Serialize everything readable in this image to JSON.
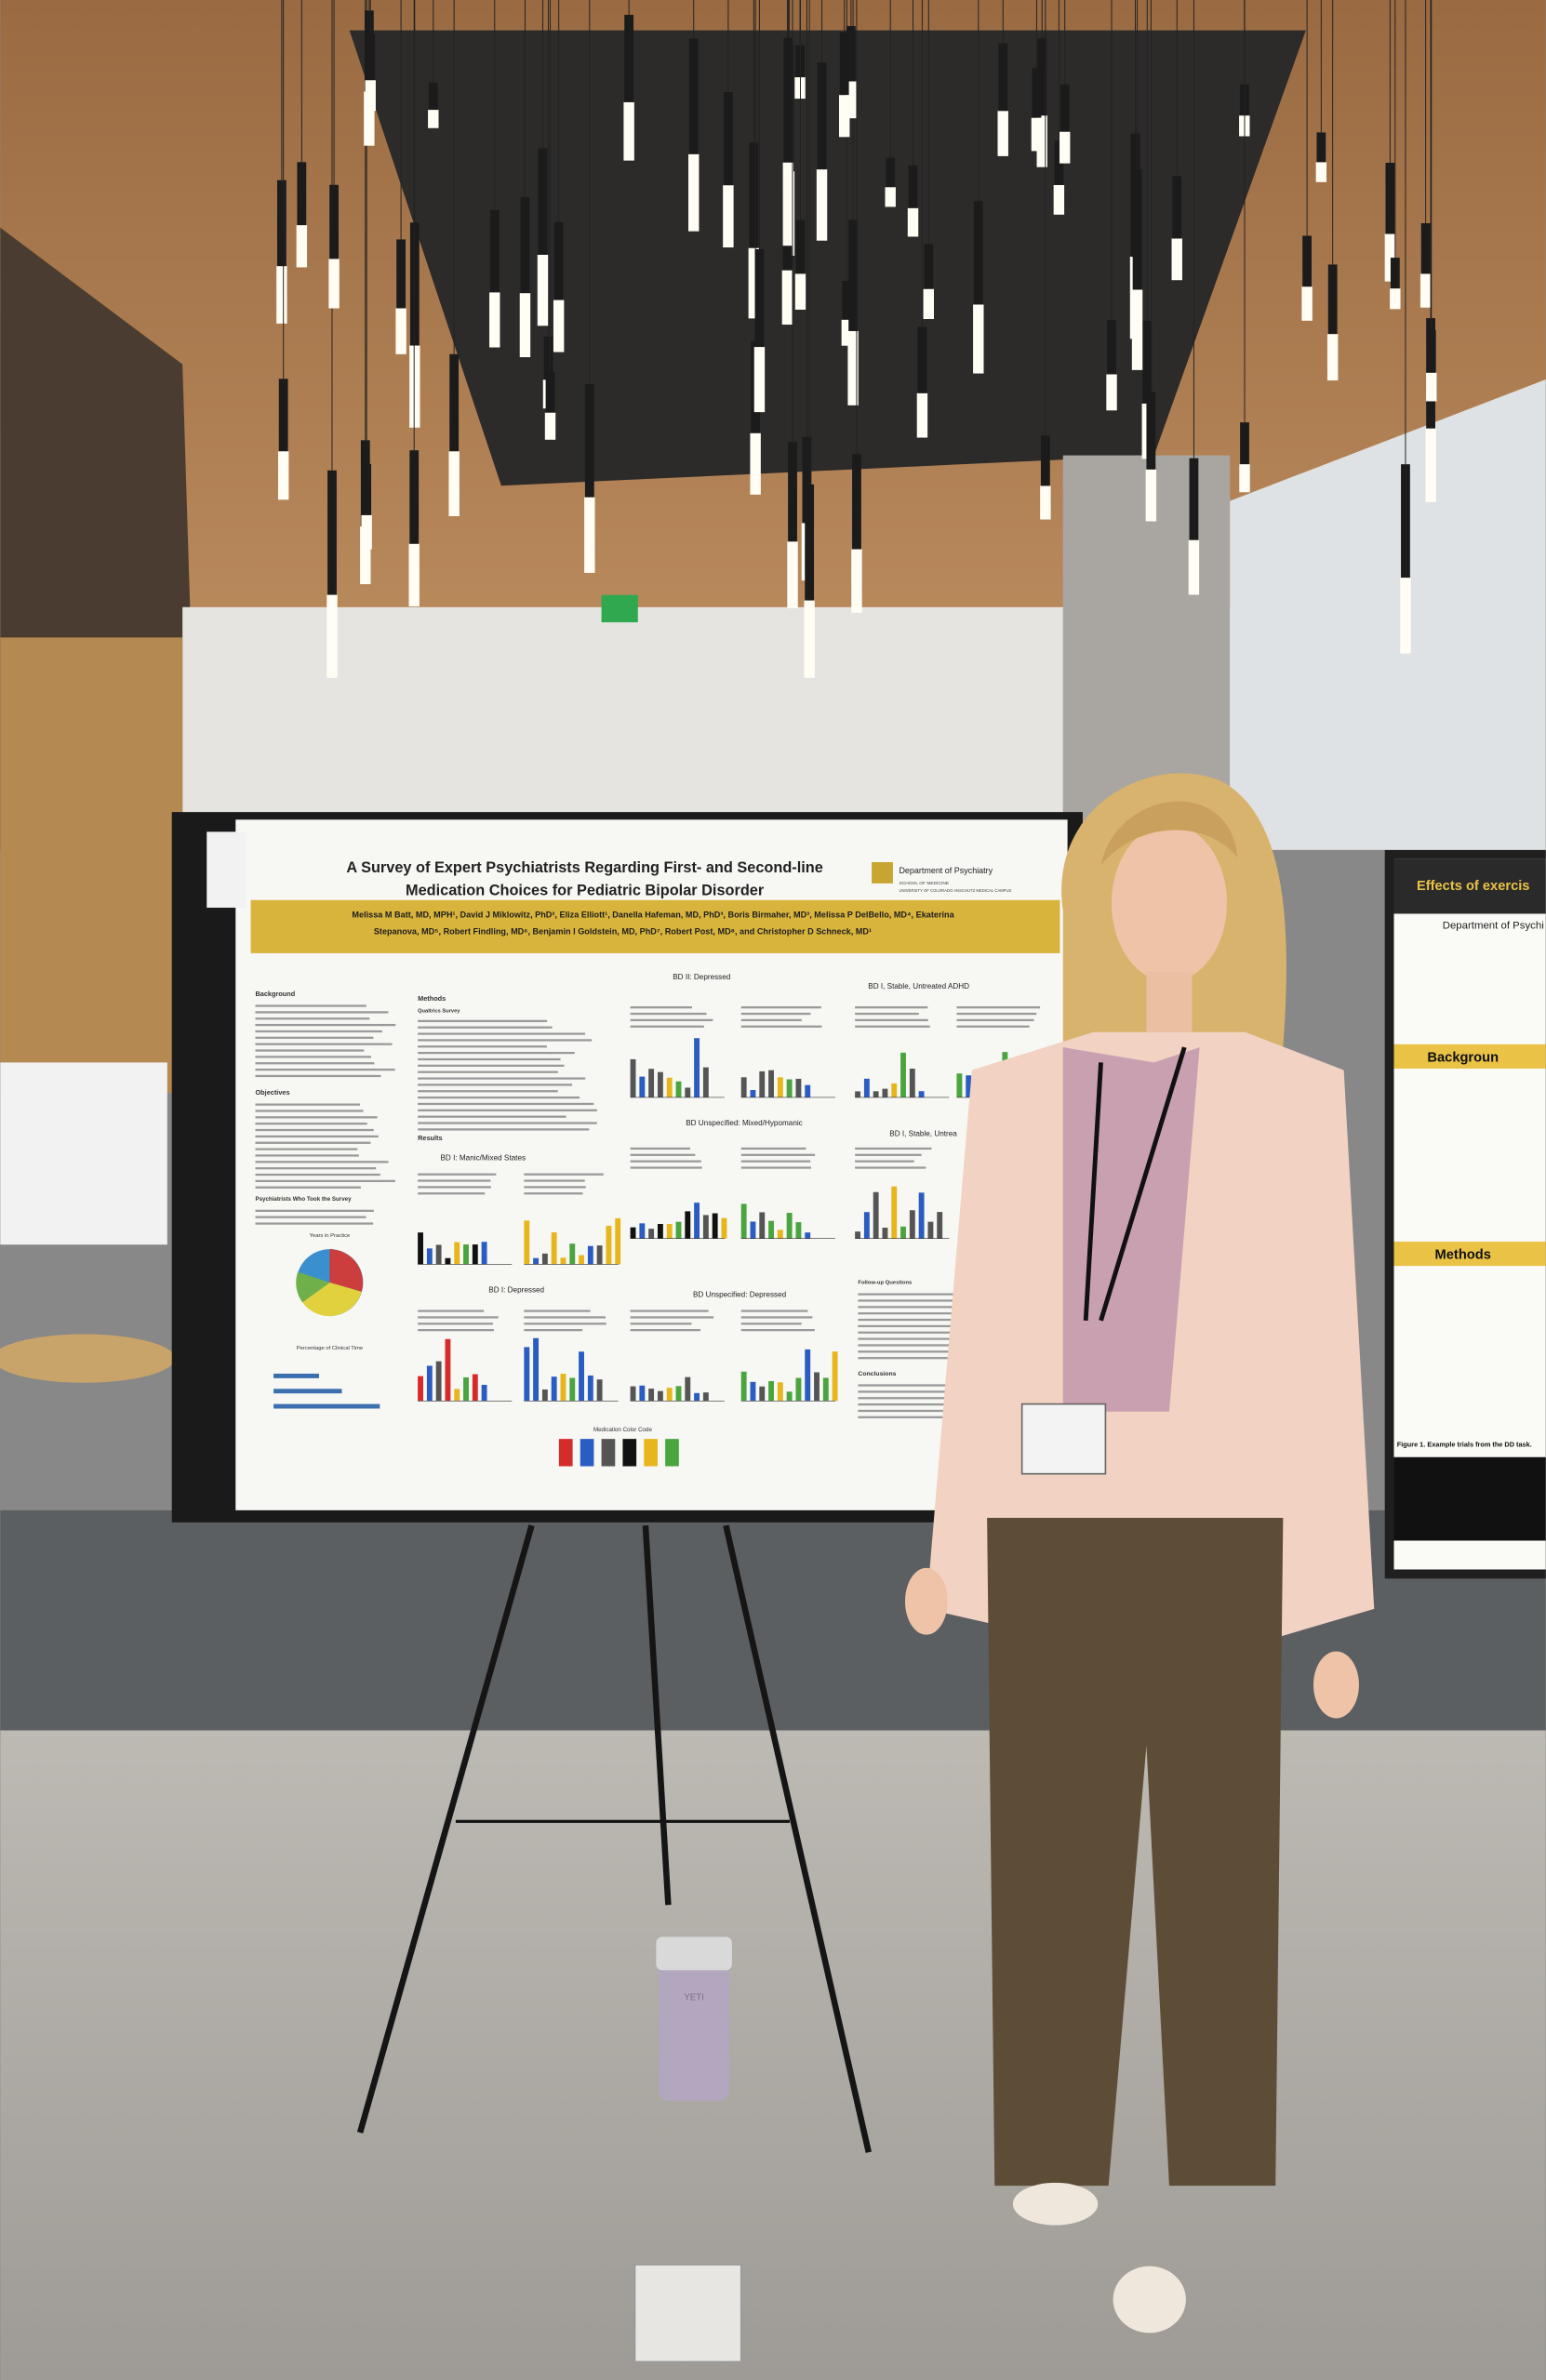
{
  "poster": {
    "title_line1": "A Survey of Expert Psychiatrists Regarding First- and Second-line",
    "title_line2": "Medication Choices for Pediatric Bipolar Disorder",
    "department": "Department of Psychiatry",
    "school": "SCHOOL OF MEDICINE",
    "campus": "UNIVERSITY OF COLORADO ANSCHUTZ MEDICAL CAMPUS",
    "authors_line1": "Melissa M Batt, MD, MPH¹, David J Miklowitz, PhD², Eliza Elliott¹, Danella Hafeman, MD, PhD³, Boris Birmaher, MD³, Melissa P DelBello, MD⁴, Ekaterina",
    "authors_line2": "Stepanova, MD⁵, Robert Findling, MD⁶, Benjamin I Goldstein, MD, PhD⁷, Robert Post, MD⁸, and Christopher D Schneck, MD¹",
    "sections": {
      "background": "Background",
      "methods": "Methods",
      "qualtrics": "Qualtrics Survey",
      "objectives": "Objectives",
      "participants": "Psychiatrists Who Took the Survey",
      "years": "Years in Practice",
      "clinical_time": "Percentage of Clinical Time",
      "results": "Results",
      "follow_up": "Follow-up Questions",
      "conclusions": "Conclusions",
      "color_code": "Medication Color Code"
    },
    "panels": [
      "BD II: Depressed",
      "BD I, Stable, Untreated ADHD",
      "BD Unspecified: Mixed/Hypomanic",
      "BD I, Stable, Untrea",
      "BD I: Manic/Mixed States",
      "BD I: Depressed",
      "BD Unspecified: Depressed"
    ]
  },
  "side_poster": {
    "title": "Effects of exercis",
    "department": "Department of Psychi",
    "background": "Backgroun",
    "methods": "Methods",
    "figure": "Figure 1. Example trials from the DD task."
  },
  "tumbler_brand": "YETI"
}
